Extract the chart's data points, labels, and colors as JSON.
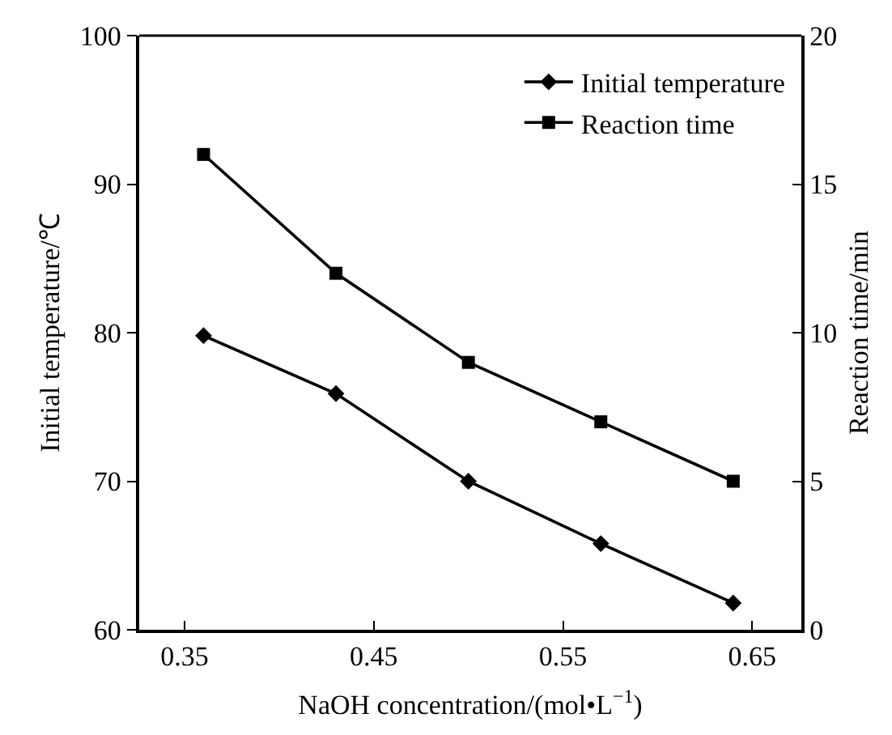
{
  "chart_data": {
    "type": "line",
    "xlabel": "NaOH concentration/(mol•L$^{−1}$)",
    "ylabel": "Initial temperature/℃",
    "y2label": "Reaction time/min",
    "x": [
      0.36,
      0.43,
      0.5,
      0.57,
      0.64
    ],
    "series": [
      {
        "name": "Initial temperature",
        "color": "#000000",
        "marker": "diamond",
        "values": [
          79.8,
          75.9,
          70,
          65.8,
          61.8
        ]
      },
      {
        "name": "Reaction time",
        "color": "#000000",
        "marker": "square",
        "axis": "y2",
        "values": [
          16,
          12,
          9,
          7,
          5
        ]
      }
    ],
    "xlim": [
      0.326,
      0.676
    ],
    "xticks": [
      0.35,
      0.45,
      0.55,
      0.65
    ],
    "ylim": [
      60,
      100
    ],
    "yticks": [
      60,
      70,
      80,
      90,
      100
    ],
    "y2lim": [
      0,
      20
    ],
    "y2ticks": [
      0,
      5,
      10,
      15,
      20
    ],
    "legend": "top right",
    "line_style": "solid"
  }
}
